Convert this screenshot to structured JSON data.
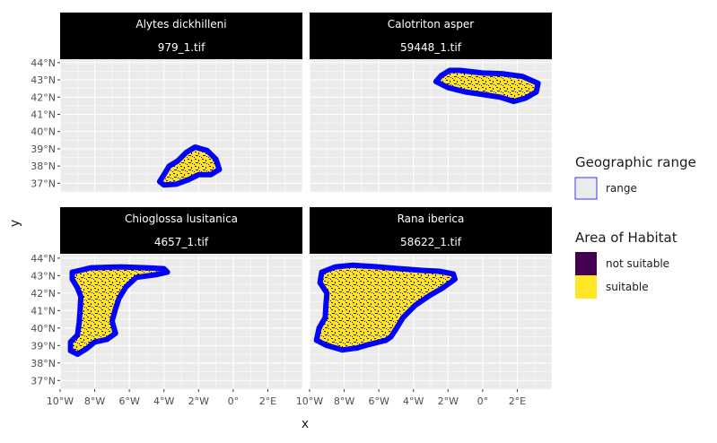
{
  "chart_data": {
    "type": "map",
    "facet_layout": "2x2",
    "panel_background": "#ebebeb",
    "grid": true,
    "xlabel": "x",
    "ylabel": "y",
    "xlim": [
      -10,
      4
    ],
    "ylim": [
      36.5,
      44.2
    ],
    "x_ticks": [
      {
        "value": -10,
        "label": "10°W"
      },
      {
        "value": -8,
        "label": "8°W"
      },
      {
        "value": -6,
        "label": "6°W"
      },
      {
        "value": -4,
        "label": "4°W"
      },
      {
        "value": -2,
        "label": "2°W"
      },
      {
        "value": 0,
        "label": "0°"
      },
      {
        "value": 2,
        "label": "2°E"
      }
    ],
    "y_ticks": [
      {
        "value": 37,
        "label": "37°N"
      },
      {
        "value": 38,
        "label": "38°N"
      },
      {
        "value": 39,
        "label": "39°N"
      },
      {
        "value": 40,
        "label": "40°N"
      },
      {
        "value": 41,
        "label": "41°N"
      },
      {
        "value": 42,
        "label": "42°N"
      },
      {
        "value": 43,
        "label": "43°N"
      },
      {
        "value": 44,
        "label": "44°N"
      }
    ],
    "panels": [
      {
        "species": "Alytes dickhilleni",
        "file": "979_1.tif",
        "range_polygon": [
          [
            -2.2,
            39.1
          ],
          [
            -1.5,
            38.9
          ],
          [
            -1.0,
            38.4
          ],
          [
            -0.8,
            37.8
          ],
          [
            -1.3,
            37.5
          ],
          [
            -2.0,
            37.5
          ],
          [
            -2.6,
            37.2
          ],
          [
            -3.3,
            36.95
          ],
          [
            -4.0,
            36.9
          ],
          [
            -4.25,
            37.1
          ],
          [
            -4.0,
            37.5
          ],
          [
            -3.7,
            38.0
          ],
          [
            -3.2,
            38.3
          ],
          [
            -2.7,
            38.8
          ]
        ]
      },
      {
        "species": "Calotriton asper",
        "file": "59448_1.tif",
        "range_polygon": [
          [
            -2.4,
            43.25
          ],
          [
            -1.9,
            43.55
          ],
          [
            -1.3,
            43.55
          ],
          [
            0.0,
            43.4
          ],
          [
            1.2,
            43.35
          ],
          [
            2.3,
            43.2
          ],
          [
            3.2,
            42.8
          ],
          [
            3.1,
            42.3
          ],
          [
            2.5,
            41.95
          ],
          [
            1.8,
            41.75
          ],
          [
            1.0,
            42.0
          ],
          [
            0.0,
            42.15
          ],
          [
            -1.0,
            42.3
          ],
          [
            -2.0,
            42.55
          ],
          [
            -2.7,
            42.9
          ]
        ]
      },
      {
        "species": "Chioglossa lusitanica",
        "file": "4657_1.tif",
        "range_polygon": [
          [
            -9.3,
            43.2
          ],
          [
            -8.2,
            43.45
          ],
          [
            -6.5,
            43.5
          ],
          [
            -5.0,
            43.45
          ],
          [
            -4.0,
            43.4
          ],
          [
            -3.8,
            43.2
          ],
          [
            -4.5,
            43.05
          ],
          [
            -5.6,
            42.9
          ],
          [
            -6.2,
            42.35
          ],
          [
            -6.6,
            41.7
          ],
          [
            -6.8,
            41.1
          ],
          [
            -7.0,
            40.4
          ],
          [
            -6.8,
            39.7
          ],
          [
            -7.3,
            39.35
          ],
          [
            -8.0,
            39.2
          ],
          [
            -8.5,
            38.8
          ],
          [
            -9.0,
            38.5
          ],
          [
            -9.4,
            38.7
          ],
          [
            -9.4,
            39.2
          ],
          [
            -9.0,
            39.6
          ],
          [
            -8.9,
            40.3
          ],
          [
            -8.85,
            41.0
          ],
          [
            -8.8,
            41.8
          ],
          [
            -9.0,
            42.3
          ],
          [
            -9.3,
            42.8
          ]
        ]
      },
      {
        "species": "Rana iberica",
        "file": "58622_1.tif",
        "range_polygon": [
          [
            -9.3,
            43.2
          ],
          [
            -8.5,
            43.5
          ],
          [
            -7.5,
            43.6
          ],
          [
            -6.0,
            43.5
          ],
          [
            -4.8,
            43.4
          ],
          [
            -3.5,
            43.3
          ],
          [
            -2.5,
            43.25
          ],
          [
            -1.7,
            43.1
          ],
          [
            -1.6,
            42.8
          ],
          [
            -2.3,
            42.3
          ],
          [
            -3.0,
            41.9
          ],
          [
            -3.9,
            41.3
          ],
          [
            -4.6,
            40.6
          ],
          [
            -5.0,
            39.95
          ],
          [
            -5.3,
            39.5
          ],
          [
            -5.6,
            39.3
          ],
          [
            -6.6,
            39.05
          ],
          [
            -7.3,
            38.85
          ],
          [
            -8.1,
            38.75
          ],
          [
            -9.0,
            39.0
          ],
          [
            -9.6,
            39.3
          ],
          [
            -9.45,
            40.0
          ],
          [
            -9.1,
            40.6
          ],
          [
            -9.05,
            41.4
          ],
          [
            -9.0,
            42.0
          ],
          [
            -9.4,
            42.6
          ]
        ]
      }
    ],
    "legend": [
      {
        "title": "Geographic range",
        "items": [
          {
            "label": "range",
            "fill": "#ebebeb",
            "stroke": "#0000ff"
          }
        ]
      },
      {
        "title": "Area of Habitat",
        "items": [
          {
            "label": "not suitable",
            "fill": "#440154"
          },
          {
            "label": "suitable",
            "fill": "#fde725"
          }
        ]
      }
    ]
  }
}
